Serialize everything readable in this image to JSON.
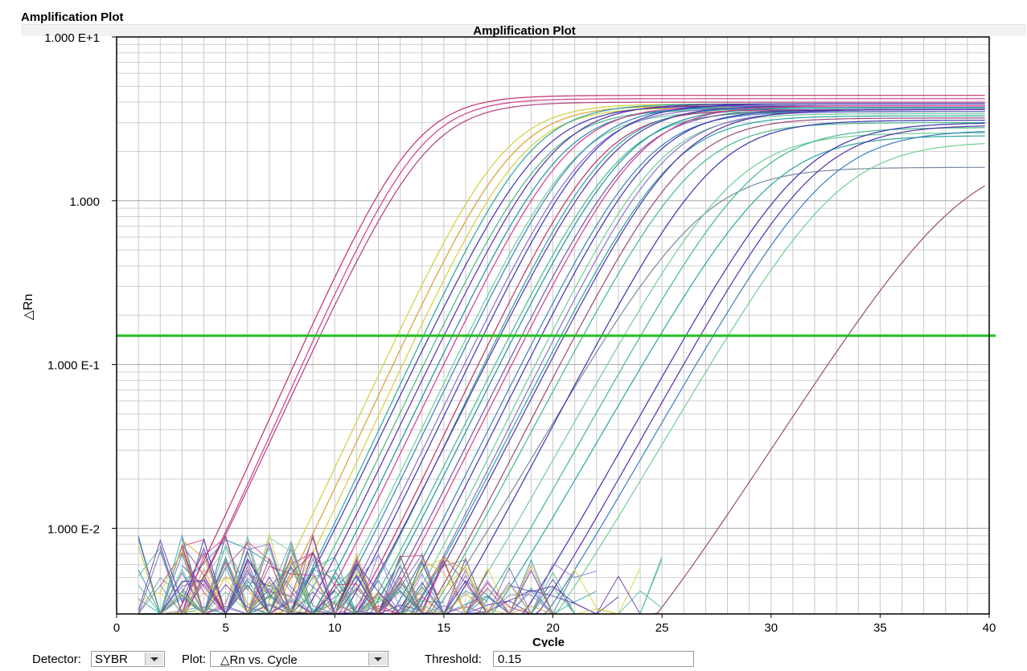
{
  "panel": {
    "title": "Amplification Plot"
  },
  "chart_data": {
    "type": "line",
    "title": "Amplification Plot",
    "xlabel": "Cycle",
    "ylabel": "△Rn",
    "xlim": [
      0,
      40
    ],
    "ylim": [
      0.003,
      10
    ],
    "yscale": "log",
    "x_ticks": [
      0,
      5,
      10,
      15,
      20,
      25,
      30,
      35,
      40
    ],
    "x_tick_labels": [
      "0",
      "5",
      "10",
      "15",
      "20",
      "25",
      "30",
      "35",
      "40"
    ],
    "y_ticks": [
      0.01,
      0.1,
      1,
      10
    ],
    "y_tick_labels": [
      "1.000 E-2",
      "1.000 E-1",
      "1.000",
      "1.000 E+1"
    ],
    "grid": true,
    "legend": "none",
    "threshold": 0.15,
    "threshold_color": "#22c022",
    "palette": [
      "#c0306a",
      "#d63a8e",
      "#3b34b0",
      "#5a2ea8",
      "#1e8fa8",
      "#2aa6a0",
      "#46b88a",
      "#6fcf97",
      "#d4cf3a",
      "#d8a02a",
      "#8a6fd0",
      "#6a5aa8",
      "#3a7fc0",
      "#9a4a7a",
      "#7a8aa0",
      "#b04080"
    ],
    "series": [
      {
        "color": "#c0306a",
        "plateau": 4.4,
        "ct": 13.6,
        "slope": 1.45
      },
      {
        "color": "#d63a8e",
        "plateau": 4.2,
        "ct": 13.9,
        "slope": 1.45
      },
      {
        "color": "#b04080",
        "plateau": 4.0,
        "ct": 14.2,
        "slope": 1.5
      },
      {
        "color": "#d4cf3a",
        "plateau": 3.9,
        "ct": 17.7,
        "slope": 1.5
      },
      {
        "color": "#d8a02a",
        "plateau": 3.8,
        "ct": 18.1,
        "slope": 1.5
      },
      {
        "color": "#d4cf3a",
        "plateau": 3.7,
        "ct": 18.5,
        "slope": 1.5
      },
      {
        "color": "#2aa6a0",
        "plateau": 3.9,
        "ct": 18.9,
        "slope": 1.5
      },
      {
        "color": "#3b34b0",
        "plateau": 3.8,
        "ct": 19.3,
        "slope": 1.55
      },
      {
        "color": "#46b88a",
        "plateau": 3.6,
        "ct": 19.6,
        "slope": 1.55
      },
      {
        "color": "#5a2ea8",
        "plateau": 3.9,
        "ct": 20.0,
        "slope": 1.55
      },
      {
        "color": "#1e8fa8",
        "plateau": 3.7,
        "ct": 20.3,
        "slope": 1.55
      },
      {
        "color": "#d63a8e",
        "plateau": 3.8,
        "ct": 20.6,
        "slope": 1.55
      },
      {
        "color": "#6fcf97",
        "plateau": 3.5,
        "ct": 20.9,
        "slope": 1.55
      },
      {
        "color": "#3a7fc0",
        "plateau": 3.8,
        "ct": 21.2,
        "slope": 1.55
      },
      {
        "color": "#8a6fd0",
        "plateau": 3.7,
        "ct": 21.5,
        "slope": 1.55
      },
      {
        "color": "#3b34b0",
        "plateau": 3.9,
        "ct": 21.8,
        "slope": 1.55
      },
      {
        "color": "#c0306a",
        "plateau": 3.6,
        "ct": 22.1,
        "slope": 1.55
      },
      {
        "color": "#2aa6a0",
        "plateau": 3.7,
        "ct": 22.4,
        "slope": 1.55
      },
      {
        "color": "#5a2ea8",
        "plateau": 3.8,
        "ct": 22.7,
        "slope": 1.6
      },
      {
        "color": "#46b88a",
        "plateau": 3.5,
        "ct": 23.0,
        "slope": 1.6
      },
      {
        "color": "#1e8fa8",
        "plateau": 3.7,
        "ct": 23.3,
        "slope": 1.6
      },
      {
        "color": "#6a5aa8",
        "plateau": 3.6,
        "ct": 23.6,
        "slope": 1.6
      },
      {
        "color": "#d63a8e",
        "plateau": 3.8,
        "ct": 23.9,
        "slope": 1.6
      },
      {
        "color": "#3a7fc0",
        "plateau": 3.5,
        "ct": 24.2,
        "slope": 1.6
      },
      {
        "color": "#3b34b0",
        "plateau": 3.6,
        "ct": 24.5,
        "slope": 1.6
      },
      {
        "color": "#6fcf97",
        "plateau": 3.4,
        "ct": 24.8,
        "slope": 1.6
      },
      {
        "color": "#8a6fd0",
        "plateau": 3.5,
        "ct": 25.1,
        "slope": 1.6
      },
      {
        "color": "#2aa6a0",
        "plateau": 3.3,
        "ct": 25.4,
        "slope": 1.65
      },
      {
        "color": "#5a2ea8",
        "plateau": 3.6,
        "ct": 25.7,
        "slope": 1.65
      },
      {
        "color": "#9a4a7a",
        "plateau": 3.2,
        "ct": 26.0,
        "slope": 1.65
      },
      {
        "color": "#46b88a",
        "plateau": 3.0,
        "ct": 26.4,
        "slope": 1.7
      },
      {
        "color": "#7a8aa0",
        "plateau": 1.6,
        "ct": 26.8,
        "slope": 1.9
      },
      {
        "color": "#3b34b0",
        "plateau": 3.1,
        "ct": 27.3,
        "slope": 1.7
      },
      {
        "color": "#6fcf97",
        "plateau": 2.6,
        "ct": 28.3,
        "slope": 1.8
      },
      {
        "color": "#46b88a",
        "plateau": 2.8,
        "ct": 29.2,
        "slope": 1.8
      },
      {
        "color": "#2aa6a0",
        "plateau": 2.5,
        "ct": 30.0,
        "slope": 1.85
      },
      {
        "color": "#3b34b0",
        "plateau": 3.0,
        "ct": 31.4,
        "slope": 1.8
      },
      {
        "color": "#5a2ea8",
        "plateau": 2.9,
        "ct": 32.0,
        "slope": 1.8
      },
      {
        "color": "#3a7fc0",
        "plateau": 2.7,
        "ct": 32.6,
        "slope": 1.85
      },
      {
        "color": "#6fcf97",
        "plateau": 2.3,
        "ct": 33.1,
        "slope": 1.9
      },
      {
        "color": "#9a4a7a",
        "plateau": 2.0,
        "ct": 38.8,
        "slope": 2.1
      }
    ]
  },
  "footer": {
    "detector_label": "Detector:",
    "detector_value": "SYBR",
    "plot_label": "Plot:",
    "plot_value": "△Rn vs. Cycle",
    "threshold_label": "Threshold:",
    "threshold_value": "0.15"
  }
}
